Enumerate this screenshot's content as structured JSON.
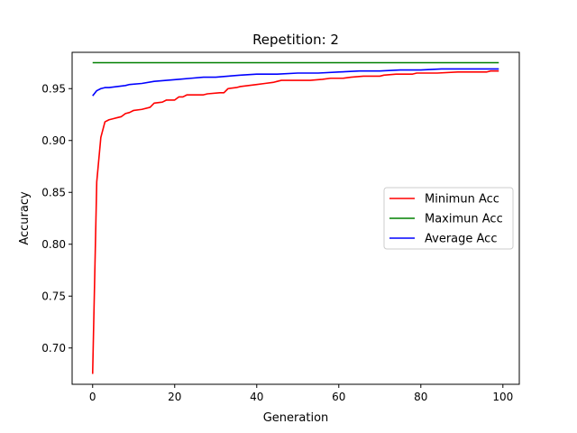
{
  "chart_data": {
    "type": "line",
    "title": "Repetition: 2",
    "xlabel": "Generation",
    "ylabel": "Accuracy",
    "xlim": [
      -5,
      104
    ],
    "ylim": [
      0.665,
      0.985
    ],
    "xticks": [
      0,
      20,
      40,
      60,
      80,
      100
    ],
    "yticks": [
      0.7,
      0.75,
      0.8,
      0.85,
      0.9,
      0.95
    ],
    "ytick_labels": [
      "0.70",
      "0.75",
      "0.80",
      "0.85",
      "0.90",
      "0.95"
    ],
    "grid": false,
    "legend_position": "center-right",
    "series": [
      {
        "name": "Minimun Acc",
        "color": "#ff0000",
        "points": [
          [
            0,
            0.675
          ],
          [
            1,
            0.86
          ],
          [
            2,
            0.903
          ],
          [
            3,
            0.918
          ],
          [
            4,
            0.92
          ],
          [
            5,
            0.921
          ],
          [
            6,
            0.922
          ],
          [
            7,
            0.923
          ],
          [
            8,
            0.926
          ],
          [
            9,
            0.927
          ],
          [
            10,
            0.929
          ],
          [
            12,
            0.93
          ],
          [
            14,
            0.932
          ],
          [
            15,
            0.936
          ],
          [
            17,
            0.937
          ],
          [
            18,
            0.939
          ],
          [
            20,
            0.939
          ],
          [
            21,
            0.942
          ],
          [
            22,
            0.942
          ],
          [
            23,
            0.944
          ],
          [
            27,
            0.944
          ],
          [
            28,
            0.945
          ],
          [
            31,
            0.946
          ],
          [
            32,
            0.946
          ],
          [
            33,
            0.95
          ],
          [
            35,
            0.951
          ],
          [
            36,
            0.952
          ],
          [
            38,
            0.953
          ],
          [
            40,
            0.954
          ],
          [
            42,
            0.955
          ],
          [
            44,
            0.956
          ],
          [
            45,
            0.957
          ],
          [
            46,
            0.958
          ],
          [
            50,
            0.958
          ],
          [
            53,
            0.958
          ],
          [
            56,
            0.959
          ],
          [
            58,
            0.96
          ],
          [
            61,
            0.96
          ],
          [
            63,
            0.961
          ],
          [
            66,
            0.962
          ],
          [
            70,
            0.962
          ],
          [
            71,
            0.963
          ],
          [
            74,
            0.964
          ],
          [
            78,
            0.964
          ],
          [
            79,
            0.965
          ],
          [
            84,
            0.965
          ],
          [
            89,
            0.966
          ],
          [
            96,
            0.966
          ],
          [
            97,
            0.967
          ],
          [
            99,
            0.967
          ]
        ]
      },
      {
        "name": "Maximun Acc",
        "color": "#008000",
        "points": [
          [
            0,
            0.975
          ],
          [
            99,
            0.975
          ]
        ]
      },
      {
        "name": "Average Acc",
        "color": "#0000ff",
        "points": [
          [
            0,
            0.943
          ],
          [
            1,
            0.948
          ],
          [
            2,
            0.95
          ],
          [
            3,
            0.951
          ],
          [
            4,
            0.951
          ],
          [
            6,
            0.952
          ],
          [
            8,
            0.953
          ],
          [
            9,
            0.954
          ],
          [
            12,
            0.955
          ],
          [
            15,
            0.957
          ],
          [
            18,
            0.958
          ],
          [
            21,
            0.959
          ],
          [
            24,
            0.96
          ],
          [
            27,
            0.961
          ],
          [
            30,
            0.961
          ],
          [
            33,
            0.962
          ],
          [
            36,
            0.963
          ],
          [
            40,
            0.964
          ],
          [
            45,
            0.964
          ],
          [
            50,
            0.965
          ],
          [
            55,
            0.965
          ],
          [
            60,
            0.966
          ],
          [
            65,
            0.967
          ],
          [
            70,
            0.967
          ],
          [
            75,
            0.968
          ],
          [
            80,
            0.968
          ],
          [
            85,
            0.969
          ],
          [
            90,
            0.969
          ],
          [
            99,
            0.969
          ]
        ]
      }
    ]
  }
}
